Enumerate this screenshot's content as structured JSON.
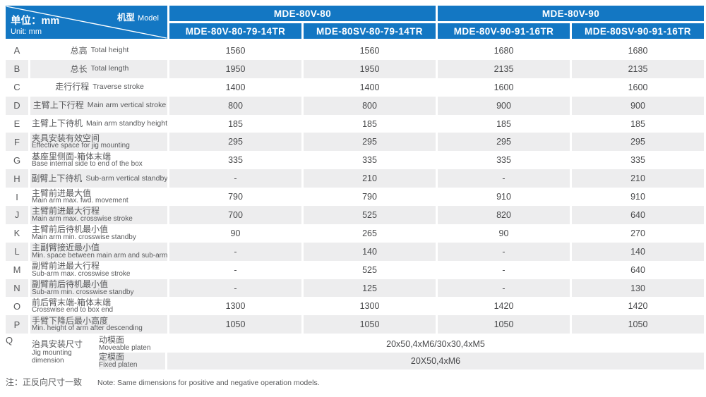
{
  "colors": {
    "header_blue": "#1377C3",
    "stripe_gray": "#EDEDEE",
    "label_text": "#58595B",
    "value_text": "#48494B"
  },
  "corner": {
    "model_cn": "机型",
    "model_en": "Model",
    "unit_cn": "单位：mm",
    "unit_en": "Unit: mm"
  },
  "header": {
    "groups": [
      {
        "label": "MDE-80V-80",
        "cols": [
          "MDE-80V-80-79-14TR",
          "MDE-80SV-80-79-14TR"
        ]
      },
      {
        "label": "MDE-80V-90",
        "cols": [
          "MDE-80V-90-91-16TR",
          "MDE-80SV-90-91-16TR"
        ]
      }
    ]
  },
  "table": {
    "rows": [
      {
        "letter": "A",
        "cn": "总高",
        "en": "Total height",
        "inline": true,
        "values": [
          "1560",
          "1560",
          "1680",
          "1680"
        ]
      },
      {
        "letter": "B",
        "cn": "总长",
        "en": "Total length",
        "inline": true,
        "values": [
          "1950",
          "1950",
          "2135",
          "2135"
        ]
      },
      {
        "letter": "C",
        "cn": "走行行程",
        "en": "Traverse stroke",
        "inline": true,
        "values": [
          "1400",
          "1400",
          "1600",
          "1600"
        ]
      },
      {
        "letter": "D",
        "cn": "主臂上下行程",
        "en": "Main arm vertical stroke",
        "inline": true,
        "values": [
          "800",
          "800",
          "900",
          "900"
        ]
      },
      {
        "letter": "E",
        "cn": "主臂上下待机",
        "en": "Main arm standby height",
        "inline": true,
        "values": [
          "185",
          "185",
          "185",
          "185"
        ]
      },
      {
        "letter": "F",
        "cn": "夹具安装有效空间",
        "en": "Effective space for jig mounting",
        "inline": false,
        "values": [
          "295",
          "295",
          "295",
          "295"
        ]
      },
      {
        "letter": "G",
        "cn": "基座里侧面-箱体末端",
        "en": "Base internal side to end of the box",
        "inline": false,
        "values": [
          "335",
          "335",
          "335",
          "335"
        ]
      },
      {
        "letter": "H",
        "cn": "副臂上下待机",
        "en": "Sub-arm vertical standby",
        "inline": true,
        "values": [
          "-",
          "210",
          "-",
          "210"
        ]
      },
      {
        "letter": "I",
        "cn": "主臂前进最大值",
        "en": "Main arm max. fwd. movement",
        "inline": false,
        "values": [
          "790",
          "790",
          "910",
          "910"
        ]
      },
      {
        "letter": "J",
        "cn": "主臂前进最大行程",
        "en": "Main arm max. crosswise stroke",
        "inline": false,
        "values": [
          "700",
          "525",
          "820",
          "640"
        ]
      },
      {
        "letter": "K",
        "cn": "主臂前后待机最小值",
        "en": "Main arm min. crosswise standby",
        "inline": false,
        "values": [
          "90",
          "265",
          "90",
          "270"
        ]
      },
      {
        "letter": "L",
        "cn": "主副臂接近最小值",
        "en": "Min. space between main arm and sub-arm",
        "inline": false,
        "values": [
          "-",
          "140",
          "-",
          "140"
        ]
      },
      {
        "letter": "M",
        "cn": "副臂前进最大行程",
        "en": "Sub-arm max. crosswise stroke",
        "inline": false,
        "values": [
          "-",
          "525",
          "-",
          "640"
        ]
      },
      {
        "letter": "N",
        "cn": "副臂前后待机最小值",
        "en": "Sub-arm min. crosswise standby",
        "inline": false,
        "values": [
          "-",
          "125",
          "-",
          "130"
        ]
      },
      {
        "letter": "O",
        "cn": "前后臂末端-箱体末端",
        "en": "Crosswise end to box end",
        "inline": false,
        "values": [
          "1300",
          "1300",
          "1420",
          "1420"
        ]
      },
      {
        "letter": "P",
        "cn": "手臂下降后最小高度",
        "en": "Min. height of arm after descending",
        "inline": false,
        "values": [
          "1050",
          "1050",
          "1050",
          "1050"
        ]
      }
    ]
  },
  "jig": {
    "letter": "Q",
    "cn": "治具安装尺寸",
    "en_line1": "Jig mounting",
    "en_line2": "dimension",
    "subs": [
      {
        "cn": "动模面",
        "en": "Moveable platen",
        "value": "20x50,4xM6/30x30,4xM5"
      },
      {
        "cn": "定模面",
        "en": "Fixed platen",
        "value": "20X50,4xM6"
      }
    ]
  },
  "footer": {
    "cn": "注：正反向尺寸一致",
    "en": "Note: Same dimensions for positive and negative operation models."
  }
}
